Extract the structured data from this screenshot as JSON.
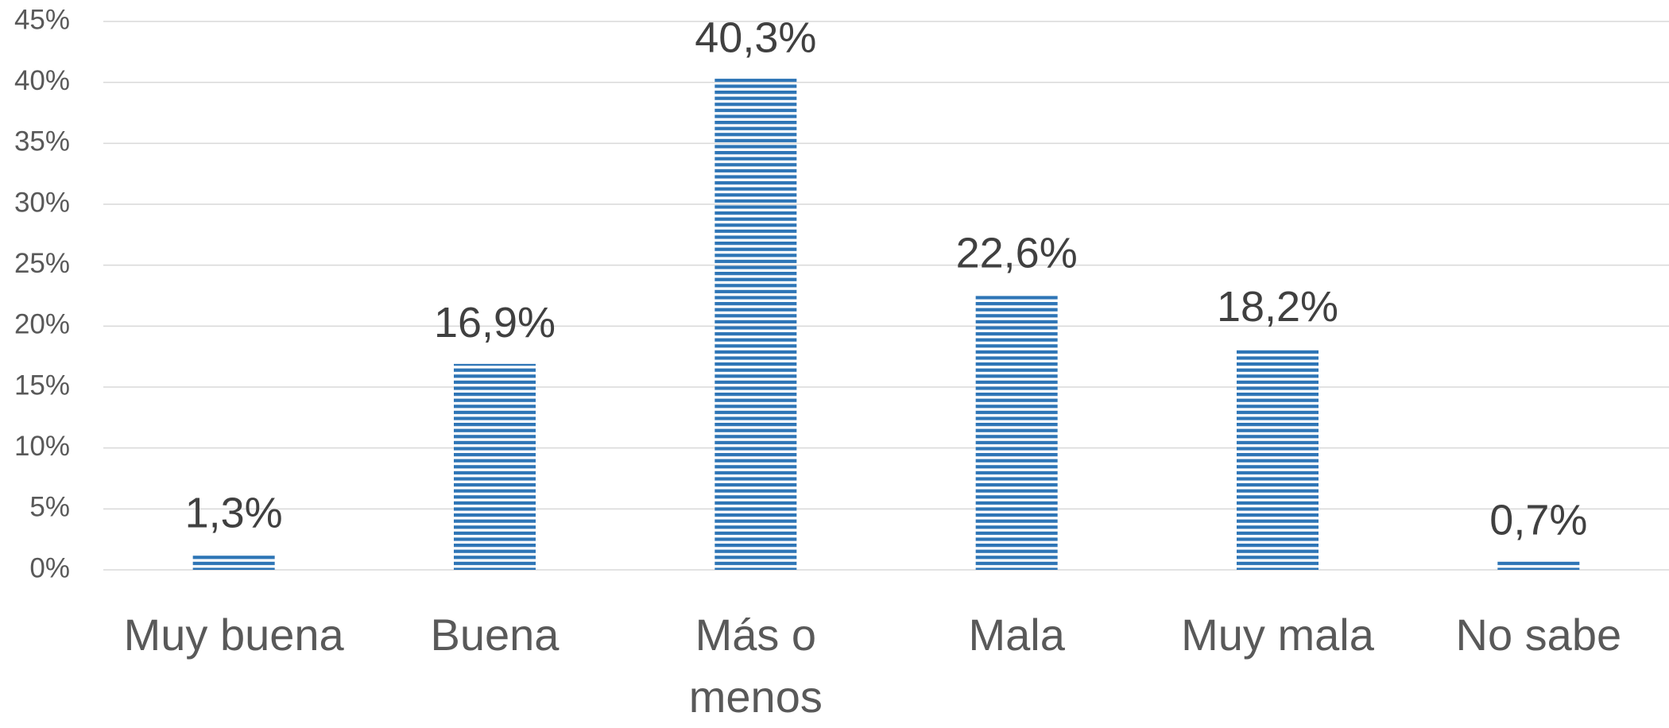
{
  "chart_data": {
    "type": "bar",
    "categories": [
      "Muy buena",
      "Buena",
      "Más o menos",
      "Mala",
      "Muy mala",
      "No sabe"
    ],
    "values": [
      1.3,
      16.9,
      40.3,
      22.6,
      18.2,
      0.7
    ],
    "value_labels": [
      "1,3%",
      "16,9%",
      "40,3%",
      "22,6%",
      "18,2%",
      "0,7%"
    ],
    "color": "#2e75b6",
    "ylim": [
      0,
      45
    ],
    "yticks": [
      {
        "value": 0,
        "label": "0%"
      },
      {
        "value": 5,
        "label": "5%"
      },
      {
        "value": 10,
        "label": "10%"
      },
      {
        "value": 15,
        "label": "15%"
      },
      {
        "value": 20,
        "label": "20%"
      },
      {
        "value": 25,
        "label": "25%"
      },
      {
        "value": 30,
        "label": "30%"
      },
      {
        "value": 35,
        "label": "35%"
      },
      {
        "value": 40,
        "label": "40%"
      },
      {
        "value": 45,
        "label": "45%"
      }
    ],
    "grid": true
  }
}
